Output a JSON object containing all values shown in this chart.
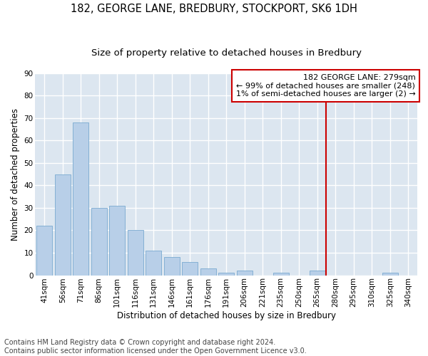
{
  "title1": "182, GEORGE LANE, BREDBURY, STOCKPORT, SK6 1DH",
  "title2": "Size of property relative to detached houses in Bredbury",
  "xlabel": "Distribution of detached houses by size in Bredbury",
  "ylabel": "Number of detached properties",
  "footnote": "Contains HM Land Registry data © Crown copyright and database right 2024.\nContains public sector information licensed under the Open Government Licence v3.0.",
  "bar_labels": [
    "41sqm",
    "56sqm",
    "71sqm",
    "86sqm",
    "101sqm",
    "116sqm",
    "131sqm",
    "146sqm",
    "161sqm",
    "176sqm",
    "191sqm",
    "206sqm",
    "221sqm",
    "235sqm",
    "250sqm",
    "265sqm",
    "280sqm",
    "295sqm",
    "310sqm",
    "325sqm",
    "340sqm"
  ],
  "bar_values": [
    22,
    45,
    68,
    30,
    31,
    20,
    11,
    8,
    6,
    3,
    1,
    2,
    0,
    1,
    0,
    2,
    0,
    0,
    0,
    1,
    0
  ],
  "bar_color": "#b8cfe8",
  "bar_edge_color": "#7aaad0",
  "background_color": "#dce6f0",
  "grid_color": "#ffffff",
  "marker_line_color": "#cc0000",
  "annotation_text": "182 GEORGE LANE: 279sqm\n← 99% of detached houses are smaller (248)\n1% of semi-detached houses are larger (2) →",
  "annotation_box_color": "#ffffff",
  "annotation_box_edge_color": "#cc0000",
  "ylim": [
    0,
    90
  ],
  "yticks": [
    0,
    10,
    20,
    30,
    40,
    50,
    60,
    70,
    80,
    90
  ],
  "title1_fontsize": 10.5,
  "title2_fontsize": 9.5,
  "axis_fontsize": 8.5,
  "tick_fontsize": 7.5,
  "footnote_fontsize": 7.0,
  "annotation_fontsize": 8.0,
  "marker_bar_index": 16
}
